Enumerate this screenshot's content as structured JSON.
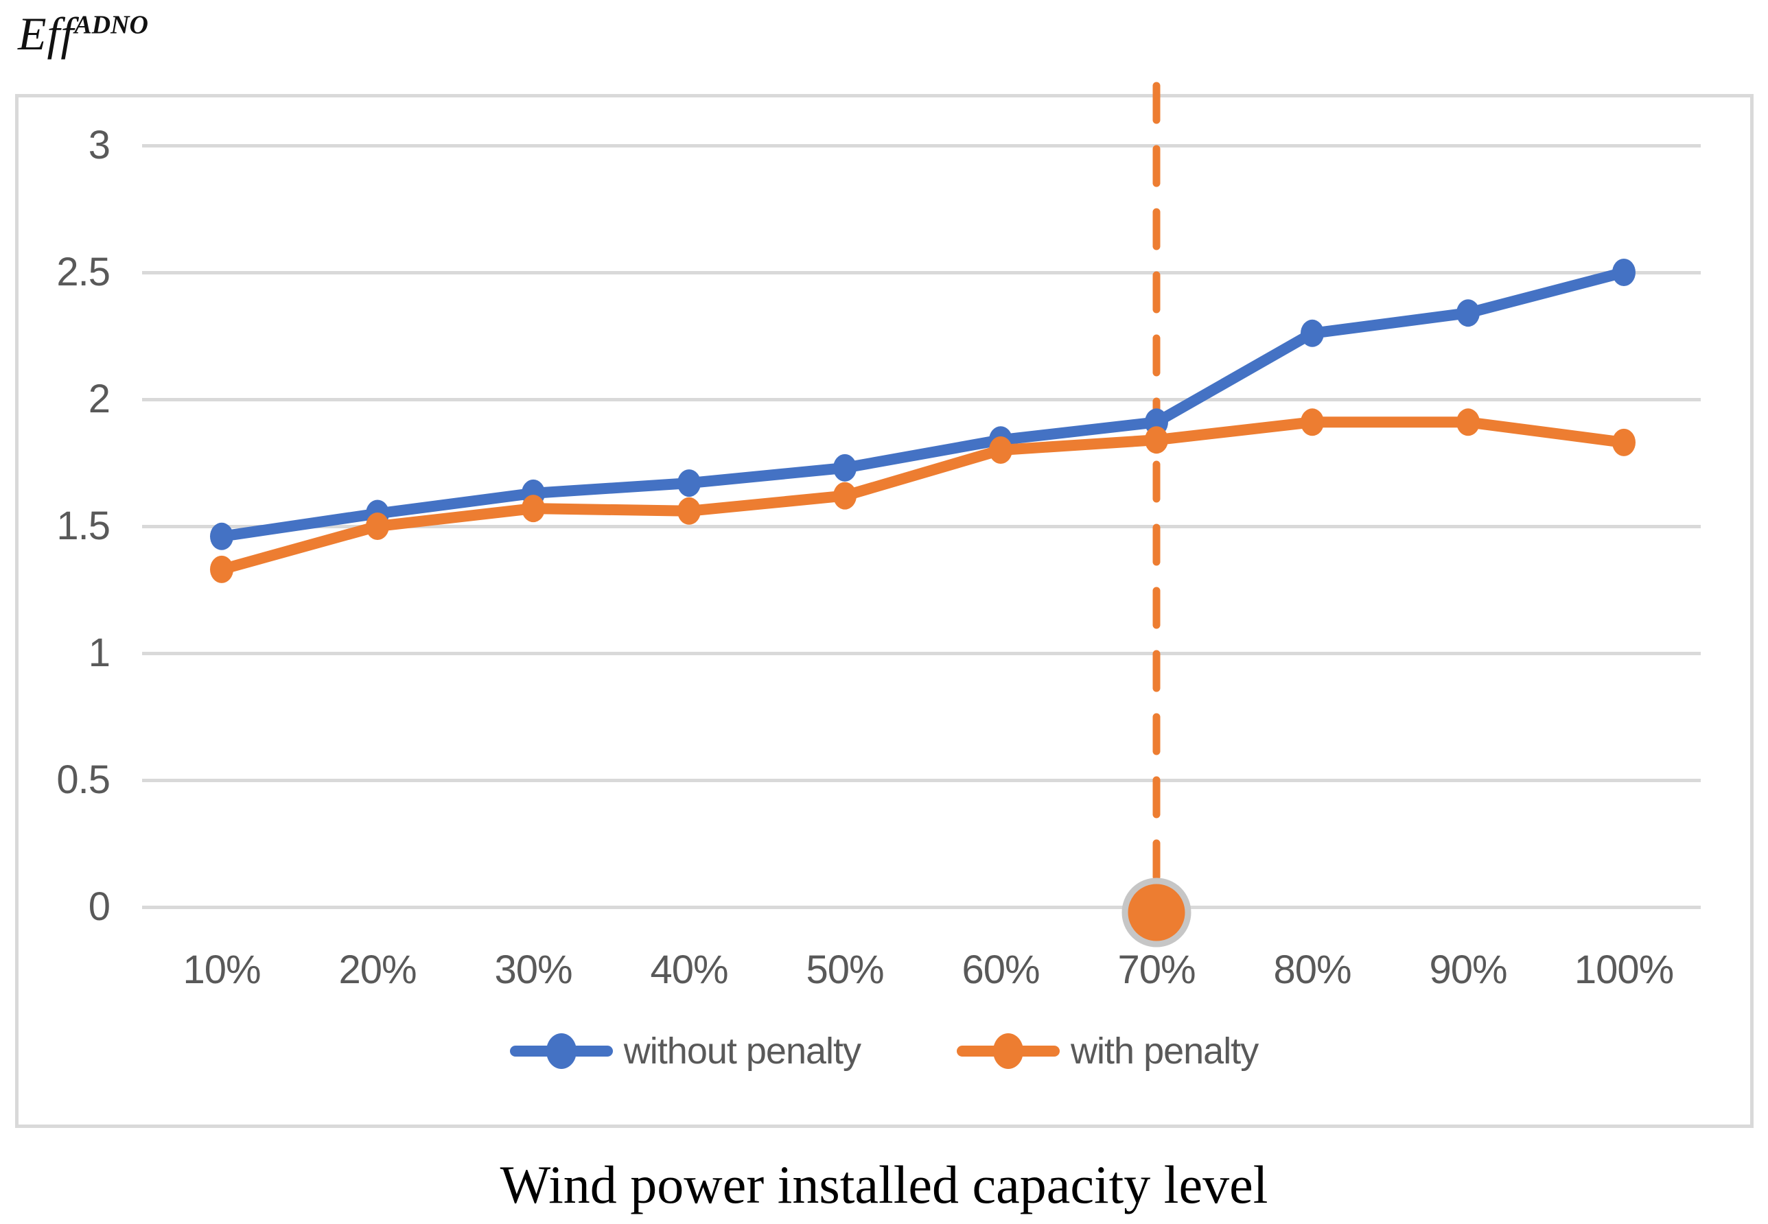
{
  "eff_label": {
    "base": "Eff",
    "superscript": "ADNO"
  },
  "axis_title": "Wind power installed capacity level",
  "legend": [
    {
      "label": "without penalty",
      "color": "#4472C4"
    },
    {
      "label": "with penalty",
      "color": "#ED7D31"
    }
  ],
  "colors": {
    "blue_series": "#4472C4",
    "orange_series": "#ED7D31",
    "gridline": "#D9D9D9",
    "axis_text": "#595959",
    "annotation_ring": "#C6C6C6"
  },
  "chart_data": {
    "type": "line",
    "title": "",
    "ylabel": "Eff ADNO",
    "xlabel": "Wind power installed capacity level",
    "categories": [
      "10%",
      "20%",
      "30%",
      "40%",
      "50%",
      "60%",
      "70%",
      "80%",
      "90%",
      "100%"
    ],
    "series": [
      {
        "name": "without penalty",
        "color": "#4472C4",
        "values": [
          1.46,
          1.55,
          1.63,
          1.67,
          1.73,
          1.84,
          1.91,
          2.26,
          2.34,
          2.5
        ]
      },
      {
        "name": "with penalty",
        "color": "#ED7D31",
        "values": [
          1.33,
          1.5,
          1.57,
          1.56,
          1.62,
          1.8,
          1.84,
          1.91,
          1.91,
          1.83
        ]
      }
    ],
    "yticks": [
      3,
      2.5,
      2,
      1.5,
      1,
      0.5,
      0
    ],
    "ylim": [
      0,
      3.2
    ],
    "grid": true,
    "legend_position": "bottom-inside",
    "annotation": {
      "type": "vertical-dashed-line-with-circle",
      "at_category": "70%",
      "circle_y": 0,
      "color": "#ED7D31"
    }
  }
}
